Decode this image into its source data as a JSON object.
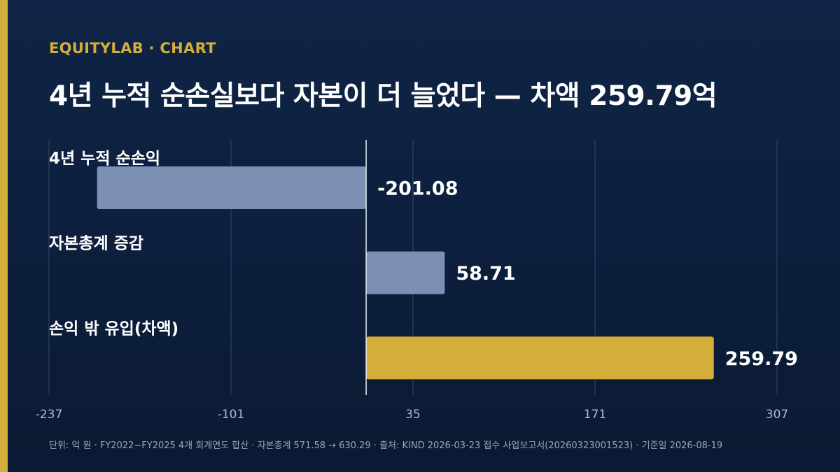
{
  "header": {
    "brand": "EQUITYLAB · CHART",
    "title": "4년 누적 순손실보다 자본이 더 늘었다 — 차액 259.79억"
  },
  "footer": {
    "note": "단위: 억 원 · FY2022~FY2025 4개 회계연도 합산 · 자본총계 571.58 → 630.29 · 출처: KIND 2026-03-23 접수 사업보고서(20260323001523) · 기준일 2026-08-19"
  },
  "colors": {
    "background": "#0f2446",
    "accent": "#d4ae3a",
    "bar_default": "#7b90b3",
    "grid": "#33486b",
    "zero_line": "#e6ecf5",
    "tick_text": "#aeb9cc"
  },
  "chart_data": {
    "type": "bar",
    "orientation": "horizontal",
    "categories": [
      "4년 누적 순손익",
      "자본총계 증감",
      "손익 밖 유입(차액)"
    ],
    "values": [
      -201.08,
      58.71,
      259.79
    ],
    "value_labels": [
      "-201.08",
      "58.71",
      "259.79"
    ],
    "highlight_index": 2,
    "xlim": [
      -237,
      307
    ],
    "xticks": [
      -237,
      -101,
      35,
      171,
      307
    ],
    "xtick_labels": [
      "-237",
      "-101",
      "35",
      "171",
      "307"
    ],
    "grid": true,
    "unit": "억 원"
  }
}
